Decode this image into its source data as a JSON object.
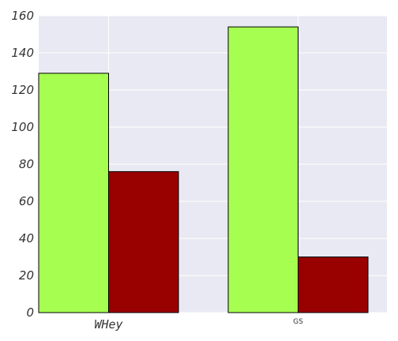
{
  "chart_data": {
    "type": "bar",
    "categories": [
      "WHey",
      "GS"
    ],
    "series": [
      {
        "values": [
          129,
          154
        ],
        "color": "#a6ff50"
      },
      {
        "values": [
          76,
          30
        ],
        "color": "#990000"
      }
    ],
    "title": "",
    "xlabel": "",
    "ylabel": "",
    "ylim": [
      0,
      160
    ],
    "yticks": [
      "0",
      "20",
      "40",
      "60",
      "80",
      "100",
      "120",
      "140",
      "160"
    ],
    "grid": true,
    "legend": "none",
    "background": "#e8e9f2"
  }
}
